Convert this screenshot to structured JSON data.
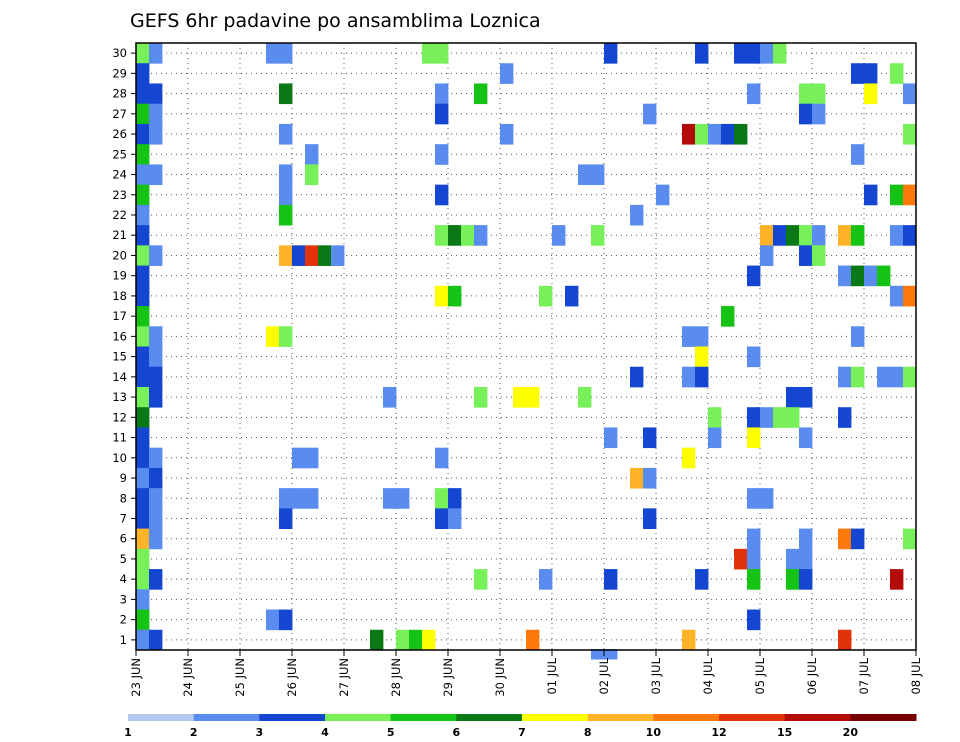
{
  "chart_data": {
    "type": "heatmap",
    "title": "GEFS 6hr padavine po ansamblima Loznica",
    "xlabel": "",
    "ylabel": "",
    "x_tick_labels": [
      "23 JUN",
      "24 JUN",
      "25 JUN",
      "26 JUN",
      "27 JUN",
      "28 JUN",
      "29 JUN",
      "30 JUN",
      "01 JUL",
      "02 JUL",
      "03 JUL",
      "04 JUL",
      "05 JUL",
      "06 JUL",
      "07 JUL",
      "08 JUL"
    ],
    "x_range_steps": [
      0,
      60
    ],
    "steps_per_day": 4,
    "y_tick_labels": [
      "1",
      "2",
      "3",
      "4",
      "5",
      "6",
      "7",
      "8",
      "9",
      "10",
      "11",
      "12",
      "13",
      "14",
      "15",
      "16",
      "17",
      "18",
      "19",
      "20",
      "21",
      "22",
      "23",
      "24",
      "25",
      "26",
      "27",
      "28",
      "29",
      "30"
    ],
    "y_range": [
      0.5,
      30.5
    ],
    "grid": true,
    "legend": {
      "placement": "bottom",
      "levels": [
        "1",
        "2",
        "3",
        "4",
        "5",
        "6",
        "7",
        "8",
        "10",
        "12",
        "15",
        "20"
      ],
      "colors": [
        "#b4c8f0",
        "#5a8cf0",
        "#1446d2",
        "#78f05a",
        "#14c314",
        "#0a7814",
        "#ffff00",
        "#ffb428",
        "#ff780a",
        "#e1320a",
        "#b40a0a",
        "#780000"
      ]
    },
    "color_index_note": "cells: [ensemble_member, step, color_class]",
    "cells": [
      [
        30,
        0,
        3
      ],
      [
        30,
        1,
        1
      ],
      [
        30,
        10,
        1
      ],
      [
        30,
        11,
        1
      ],
      [
        30,
        22,
        3
      ],
      [
        30,
        23,
        3
      ],
      [
        30,
        36,
        2
      ],
      [
        30,
        43,
        2
      ],
      [
        30,
        46,
        2
      ],
      [
        30,
        47,
        2
      ],
      [
        30,
        48,
        1
      ],
      [
        30,
        49,
        3
      ],
      [
        29,
        0,
        2
      ],
      [
        29,
        28,
        1
      ],
      [
        29,
        55,
        2
      ],
      [
        29,
        56,
        2
      ],
      [
        29,
        58,
        3
      ],
      [
        28,
        0,
        2
      ],
      [
        28,
        1,
        2
      ],
      [
        28,
        11,
        5
      ],
      [
        28,
        23,
        1
      ],
      [
        28,
        26,
        4
      ],
      [
        28,
        47,
        1
      ],
      [
        28,
        51,
        3
      ],
      [
        28,
        52,
        3
      ],
      [
        28,
        56,
        6
      ],
      [
        28,
        59,
        1
      ],
      [
        27,
        0,
        4
      ],
      [
        27,
        1,
        1
      ],
      [
        27,
        23,
        2
      ],
      [
        27,
        39,
        1
      ],
      [
        27,
        51,
        2
      ],
      [
        27,
        52,
        1
      ],
      [
        26,
        0,
        2
      ],
      [
        26,
        1,
        1
      ],
      [
        26,
        11,
        1
      ],
      [
        26,
        28,
        1
      ],
      [
        26,
        42,
        10
      ],
      [
        26,
        43,
        3
      ],
      [
        26,
        44,
        1
      ],
      [
        26,
        45,
        2
      ],
      [
        26,
        46,
        5
      ],
      [
        26,
        59,
        3
      ],
      [
        25,
        0,
        4
      ],
      [
        25,
        13,
        1
      ],
      [
        25,
        23,
        1
      ],
      [
        25,
        55,
        1
      ],
      [
        24,
        0,
        1
      ],
      [
        24,
        1,
        1
      ],
      [
        24,
        11,
        1
      ],
      [
        24,
        13,
        3
      ],
      [
        24,
        34,
        1
      ],
      [
        24,
        35,
        1
      ],
      [
        23,
        0,
        4
      ],
      [
        23,
        11,
        1
      ],
      [
        23,
        23,
        2
      ],
      [
        23,
        40,
        1
      ],
      [
        23,
        56,
        2
      ],
      [
        23,
        58,
        4
      ],
      [
        23,
        59,
        8
      ],
      [
        22,
        0,
        1
      ],
      [
        22,
        11,
        4
      ],
      [
        22,
        38,
        1
      ],
      [
        21,
        0,
        2
      ],
      [
        21,
        23,
        3
      ],
      [
        21,
        24,
        5
      ],
      [
        21,
        25,
        3
      ],
      [
        21,
        26,
        1
      ],
      [
        21,
        32,
        1
      ],
      [
        21,
        35,
        3
      ],
      [
        21,
        48,
        7
      ],
      [
        21,
        49,
        2
      ],
      [
        21,
        50,
        5
      ],
      [
        21,
        51,
        3
      ],
      [
        21,
        52,
        1
      ],
      [
        21,
        54,
        7
      ],
      [
        21,
        55,
        4
      ],
      [
        21,
        58,
        1
      ],
      [
        21,
        59,
        2
      ],
      [
        20,
        0,
        3
      ],
      [
        20,
        1,
        1
      ],
      [
        20,
        11,
        7
      ],
      [
        20,
        12,
        2
      ],
      [
        20,
        13,
        9
      ],
      [
        20,
        14,
        5
      ],
      [
        20,
        15,
        1
      ],
      [
        20,
        48,
        1
      ],
      [
        20,
        51,
        2
      ],
      [
        20,
        52,
        3
      ],
      [
        19,
        0,
        2
      ],
      [
        19,
        47,
        2
      ],
      [
        19,
        54,
        1
      ],
      [
        19,
        55,
        5
      ],
      [
        19,
        56,
        1
      ],
      [
        19,
        57,
        4
      ],
      [
        18,
        0,
        2
      ],
      [
        18,
        23,
        6
      ],
      [
        18,
        24,
        4
      ],
      [
        18,
        31,
        3
      ],
      [
        18,
        33,
        2
      ],
      [
        18,
        58,
        1
      ],
      [
        18,
        59,
        8
      ],
      [
        17,
        0,
        4
      ],
      [
        17,
        45,
        4
      ],
      [
        16,
        0,
        3
      ],
      [
        16,
        1,
        1
      ],
      [
        16,
        10,
        6
      ],
      [
        16,
        11,
        3
      ],
      [
        16,
        42,
        1
      ],
      [
        16,
        43,
        1
      ],
      [
        16,
        55,
        1
      ],
      [
        15,
        0,
        2
      ],
      [
        15,
        1,
        1
      ],
      [
        15,
        43,
        6
      ],
      [
        15,
        47,
        1
      ],
      [
        14,
        0,
        2
      ],
      [
        14,
        1,
        2
      ],
      [
        14,
        38,
        2
      ],
      [
        14,
        42,
        1
      ],
      [
        14,
        43,
        2
      ],
      [
        14,
        54,
        1
      ],
      [
        14,
        55,
        3
      ],
      [
        14,
        57,
        1
      ],
      [
        14,
        58,
        1
      ],
      [
        14,
        59,
        3
      ],
      [
        13,
        0,
        3
      ],
      [
        13,
        1,
        2
      ],
      [
        13,
        19,
        1
      ],
      [
        13,
        26,
        3
      ],
      [
        13,
        29,
        6
      ],
      [
        13,
        30,
        6
      ],
      [
        13,
        34,
        3
      ],
      [
        13,
        50,
        2
      ],
      [
        13,
        51,
        2
      ],
      [
        12,
        0,
        5
      ],
      [
        12,
        44,
        3
      ],
      [
        12,
        47,
        2
      ],
      [
        12,
        48,
        1
      ],
      [
        12,
        49,
        3
      ],
      [
        12,
        50,
        3
      ],
      [
        12,
        54,
        2
      ],
      [
        11,
        0,
        2
      ],
      [
        11,
        36,
        1
      ],
      [
        11,
        39,
        2
      ],
      [
        11,
        44,
        1
      ],
      [
        11,
        47,
        6
      ],
      [
        11,
        51,
        1
      ],
      [
        10,
        0,
        2
      ],
      [
        10,
        1,
        1
      ],
      [
        10,
        12,
        1
      ],
      [
        10,
        13,
        1
      ],
      [
        10,
        23,
        1
      ],
      [
        10,
        42,
        6
      ],
      [
        9,
        0,
        1
      ],
      [
        9,
        1,
        2
      ],
      [
        9,
        38,
        7
      ],
      [
        9,
        39,
        1
      ],
      [
        8,
        0,
        2
      ],
      [
        8,
        1,
        1
      ],
      [
        8,
        11,
        1
      ],
      [
        8,
        12,
        1
      ],
      [
        8,
        13,
        1
      ],
      [
        8,
        19,
        1
      ],
      [
        8,
        20,
        1
      ],
      [
        8,
        23,
        3
      ],
      [
        8,
        24,
        2
      ],
      [
        8,
        47,
        1
      ],
      [
        8,
        48,
        1
      ],
      [
        7,
        0,
        2
      ],
      [
        7,
        1,
        1
      ],
      [
        7,
        11,
        2
      ],
      [
        7,
        23,
        2
      ],
      [
        7,
        24,
        1
      ],
      [
        7,
        39,
        2
      ],
      [
        6,
        0,
        7
      ],
      [
        6,
        1,
        1
      ],
      [
        6,
        47,
        1
      ],
      [
        6,
        51,
        1
      ],
      [
        6,
        54,
        8
      ],
      [
        6,
        55,
        2
      ],
      [
        6,
        59,
        3
      ],
      [
        5,
        0,
        3
      ],
      [
        5,
        46,
        9
      ],
      [
        5,
        47,
        1
      ],
      [
        5,
        50,
        1
      ],
      [
        5,
        51,
        1
      ],
      [
        4,
        0,
        3
      ],
      [
        4,
        1,
        2
      ],
      [
        4,
        26,
        3
      ],
      [
        4,
        31,
        1
      ],
      [
        4,
        36,
        2
      ],
      [
        4,
        43,
        2
      ],
      [
        4,
        47,
        4
      ],
      [
        4,
        50,
        4
      ],
      [
        4,
        51,
        2
      ],
      [
        4,
        58,
        10
      ],
      [
        3,
        0,
        1
      ],
      [
        2,
        0,
        4
      ],
      [
        2,
        10,
        1
      ],
      [
        2,
        11,
        2
      ],
      [
        2,
        47,
        2
      ],
      [
        1,
        0,
        1
      ],
      [
        1,
        1,
        2
      ],
      [
        1,
        18,
        5
      ],
      [
        1,
        20,
        3
      ],
      [
        1,
        21,
        4
      ],
      [
        1,
        22,
        6
      ],
      [
        1,
        30,
        8
      ],
      [
        1,
        42,
        7
      ],
      [
        1,
        54,
        9
      ],
      [
        0,
        35,
        1
      ],
      [
        0,
        36,
        1
      ]
    ]
  }
}
